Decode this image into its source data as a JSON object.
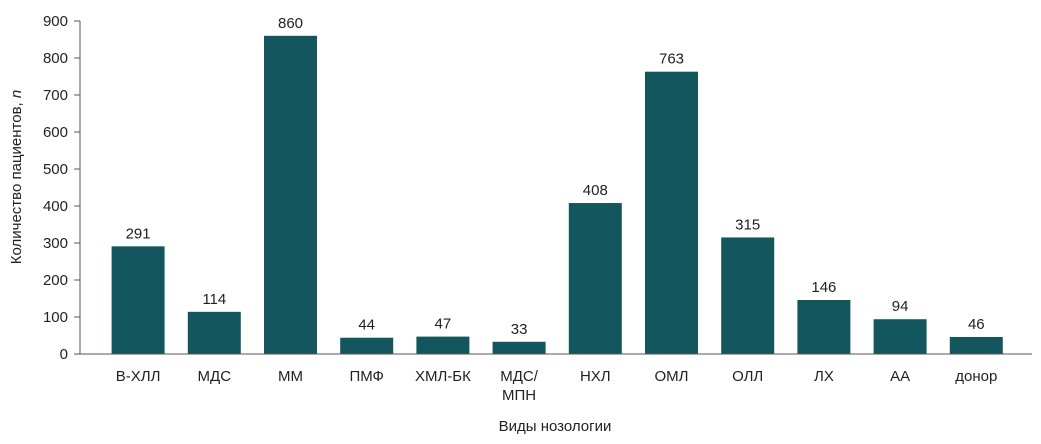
{
  "chart_data": {
    "type": "bar",
    "title": "",
    "xlabel": "Виды нозологии",
    "ylabel_main": "Количество пациентов, ",
    "ylabel_italic": "n",
    "ylim": [
      0,
      900
    ],
    "yticks": [
      0,
      100,
      200,
      300,
      400,
      500,
      600,
      700,
      800,
      900
    ],
    "grid": false,
    "legend": "none",
    "bar_color": "#13565e",
    "categories": [
      [
        "В-ХЛЛ"
      ],
      [
        "МДС"
      ],
      [
        "ММ"
      ],
      [
        "ПМФ"
      ],
      [
        "ХМЛ-БК"
      ],
      [
        "МДС/",
        "МПН"
      ],
      [
        "НХЛ"
      ],
      [
        "ОМЛ"
      ],
      [
        "ОЛЛ"
      ],
      [
        "ЛХ"
      ],
      [
        "АА"
      ],
      [
        "донор"
      ]
    ],
    "values": [
      291,
      114,
      860,
      44,
      47,
      33,
      408,
      763,
      315,
      146,
      94,
      46
    ],
    "data_labels": [
      "291",
      "114",
      "860",
      "44",
      "47",
      "33",
      "408",
      "763",
      "315",
      "146",
      "94",
      "46"
    ]
  }
}
